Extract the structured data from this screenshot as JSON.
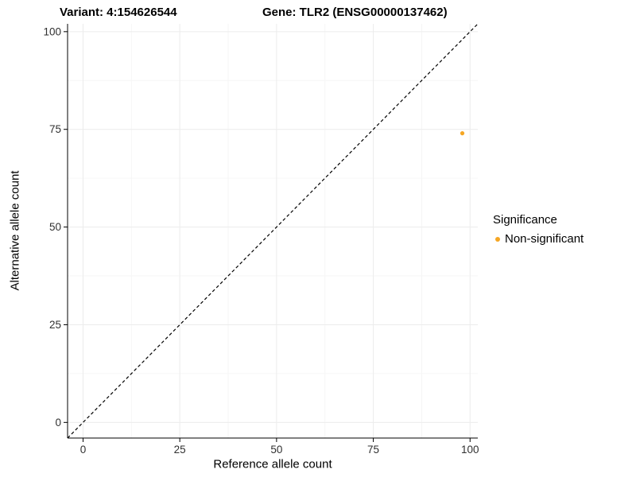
{
  "titles": {
    "variant": "Variant: 4:154626544",
    "gene": "Gene: TLR2 (ENSG00000137462)"
  },
  "chart_data": {
    "type": "scatter",
    "title": "Variant: 4:154626544    Gene: TLR2 (ENSG00000137462)",
    "xlabel": "Reference allele count",
    "ylabel": "Alternative allele count",
    "xlim": [
      -4,
      102
    ],
    "ylim": [
      -4,
      102
    ],
    "xticks": [
      0,
      25,
      50,
      75,
      100
    ],
    "yticks": [
      0,
      25,
      50,
      75,
      100
    ],
    "grid": "on",
    "points": [
      {
        "x": 98,
        "y": 74,
        "series": "Non-significant"
      }
    ],
    "point_color": "#F5A623",
    "point_radius": 2.6,
    "identity_line": {
      "style": "dashed",
      "from": -4,
      "to": 102,
      "color": "#000000"
    },
    "legend": {
      "position": "right",
      "title": "Significance",
      "items": [
        {
          "label": "Non-significant",
          "color": "#F5A623"
        }
      ]
    }
  },
  "colors": {
    "grid_major": "#ECECEC",
    "grid_minor": "#F6F6F6",
    "axis": "#000000",
    "tick_text": "#303030"
  }
}
